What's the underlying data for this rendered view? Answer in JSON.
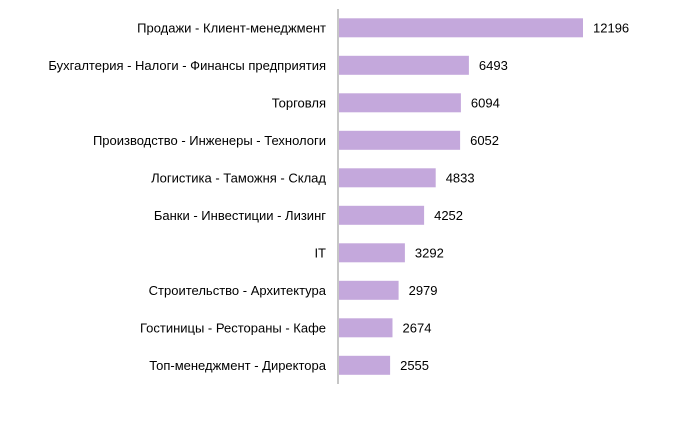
{
  "chart_data": {
    "type": "bar",
    "orientation": "horizontal",
    "categories": [
      "Продажи - Клиент-менеджмент",
      "Бухгалтерия - Налоги - Финансы предприятия",
      "Торговля",
      "Производство - Инженеры - Технологи",
      "Логистика - Таможня - Склад",
      "Банки - Инвестиции - Лизинг",
      "IT",
      "Строительство - Архитектура",
      "Гостиницы - Рестораны - Кафе",
      "Топ-менеджмент - Директора"
    ],
    "values": [
      12196,
      6493,
      6094,
      6052,
      4833,
      4252,
      3292,
      2979,
      2674,
      2555
    ],
    "data_labels": [
      "12196",
      "6493",
      "6094",
      "6052",
      "4833",
      "4252",
      "3292",
      "2979",
      "2674",
      "2555"
    ],
    "xlim": [
      0,
      12196
    ],
    "bar_color": "#c4a8dc",
    "axis_color": "#8c8c8c",
    "grid": false,
    "legend": "none",
    "title": "",
    "xlabel": "",
    "ylabel": ""
  }
}
